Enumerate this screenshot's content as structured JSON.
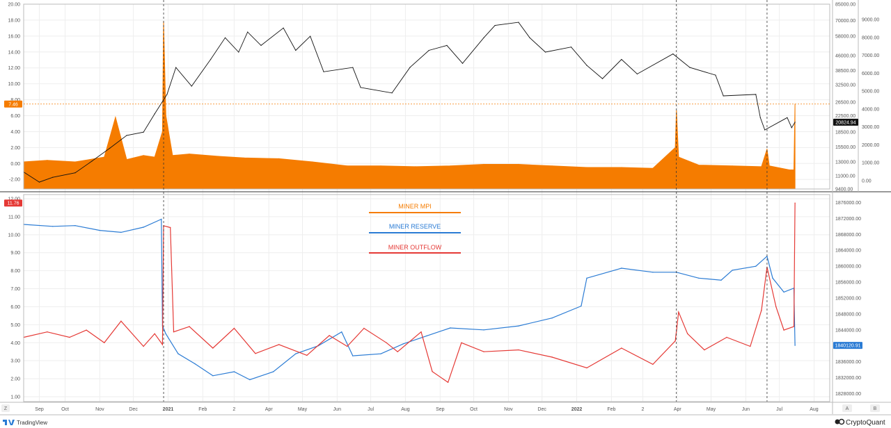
{
  "app": {
    "tradingview_label": "TradingView",
    "brand_label": "CryptoQuant"
  },
  "corner_buttons": {
    "left": "Z",
    "right_a": "A",
    "right_b": "B"
  },
  "colors": {
    "mpi": "#f57c00",
    "price": "#111111",
    "reserve": "#2a7bd4",
    "outflow": "#e53935",
    "grid": "#eeeeee",
    "axis": "#bbbbbb"
  },
  "x_labels": [
    "Sep",
    "Oct",
    "Nov",
    "Dec",
    "2021",
    "Feb",
    "2",
    "Apr",
    "May",
    "Jun",
    "Jul",
    "Aug",
    "Sep",
    "Oct",
    "Nov",
    "Dec",
    "2022",
    "Feb",
    "2",
    "Apr",
    "May",
    "Jun",
    "Jul",
    "Aug"
  ],
  "top_left_ticks": [
    "20.00",
    "18.00",
    "16.00",
    "14.00",
    "12.00",
    "10.00",
    "8.00",
    "6.00",
    "4.00",
    "2.00",
    "0.00",
    "-2.00"
  ],
  "top_mid_ticks": [
    "85000.00",
    "70000.00",
    "58000.00",
    "46000.00",
    "38500.00",
    "32500.00",
    "26500.00",
    "22500.00",
    "18500.00",
    "15500.00",
    "13000.00",
    "11000.00",
    "9400.00"
  ],
  "top_right_ticks": [
    "9000.00",
    "8000.00",
    "7000.00",
    "6000.00",
    "5000.00",
    "4000.00",
    "3000.00",
    "2000.00",
    "1000.00",
    "0.00"
  ],
  "bottom_left_ticks": [
    "12.00",
    "11.00",
    "10.00",
    "9.00",
    "8.00",
    "7.00",
    "6.00",
    "5.00",
    "4.00",
    "3.00",
    "2.00",
    "1.00"
  ],
  "bottom_right_ticks": [
    "1876000.00",
    "1872000.00",
    "1868000.00",
    "1864000.00",
    "1860000.00",
    "1856000.00",
    "1852000.00",
    "1848000.00",
    "1844000.00",
    "1840000.00",
    "1836000.00",
    "1832000.00",
    "1828000.00"
  ],
  "tags": {
    "mpi_last": "7.46",
    "price_last": "20824.94",
    "outflow_last": "11.76",
    "reserve_last": "1840120.91"
  },
  "legend": {
    "mpi": "MINER MPI",
    "reserve": "MINER RESERVE",
    "outflow": "MINER OUTFLOW"
  },
  "chart_data": {
    "type": "line",
    "x_range": [
      "2020-08-25",
      "2022-08-15"
    ],
    "markers": [
      "2020-12-28",
      "2022-03-31",
      "2022-06-20"
    ],
    "panels": [
      {
        "series": [
          {
            "name": "MINER MPI",
            "type": "area",
            "points": [
              [
                "2020-08-25",
                0.2
              ],
              [
                "2020-09-15",
                0.4
              ],
              [
                "2020-10-10",
                0.2
              ],
              [
                "2020-11-05",
                0.8
              ],
              [
                "2020-11-15",
                5.8
              ],
              [
                "2020-11-25",
                0.5
              ],
              [
                "2020-12-10",
                1.0
              ],
              [
                "2020-12-20",
                0.8
              ],
              [
                "2020-12-27",
                4.0
              ],
              [
                "2020-12-28",
                17.8
              ],
              [
                "2020-12-30",
                6.0
              ],
              [
                "2021-01-05",
                1.0
              ],
              [
                "2021-01-20",
                1.2
              ],
              [
                "2021-02-15",
                0.9
              ],
              [
                "2021-03-10",
                0.7
              ],
              [
                "2021-04-10",
                0.6
              ],
              [
                "2021-05-10",
                0.2
              ],
              [
                "2021-06-10",
                -0.3
              ],
              [
                "2021-07-10",
                -0.3
              ],
              [
                "2021-08-10",
                -0.4
              ],
              [
                "2021-09-10",
                -0.3
              ],
              [
                "2021-10-10",
                -0.1
              ],
              [
                "2021-11-10",
                -0.1
              ],
              [
                "2021-12-10",
                -0.3
              ],
              [
                "2022-01-10",
                -0.5
              ],
              [
                "2022-02-10",
                -0.5
              ],
              [
                "2022-03-10",
                -0.6
              ],
              [
                "2022-03-30",
                2.0
              ],
              [
                "2022-03-31",
                6.6
              ],
              [
                "2022-04-02",
                0.8
              ],
              [
                "2022-04-20",
                -0.2
              ],
              [
                "2022-05-20",
                -0.3
              ],
              [
                "2022-06-15",
                -0.4
              ],
              [
                "2022-06-20",
                1.8
              ],
              [
                "2022-06-22",
                -0.3
              ],
              [
                "2022-07-10",
                -0.8
              ],
              [
                "2022-07-14",
                -0.8
              ],
              [
                "2022-07-15",
                7.46
              ]
            ]
          },
          {
            "name": "Bitcoin price",
            "type": "line",
            "points": [
              [
                "2020-08-25",
                11500
              ],
              [
                "2020-09-08",
                10200
              ],
              [
                "2020-09-20",
                10800
              ],
              [
                "2020-10-10",
                11400
              ],
              [
                "2020-10-25",
                13100
              ],
              [
                "2020-11-10",
                15300
              ],
              [
                "2020-11-25",
                17800
              ],
              [
                "2020-12-10",
                18500
              ],
              [
                "2020-12-20",
                23000
              ],
              [
                "2020-12-31",
                29000
              ],
              [
                "2021-01-08",
                40000
              ],
              [
                "2021-01-22",
                32000
              ],
              [
                "2021-02-08",
                44000
              ],
              [
                "2021-02-21",
                57000
              ],
              [
                "2021-03-05",
                48000
              ],
              [
                "2021-03-13",
                61000
              ],
              [
                "2021-03-25",
                52000
              ],
              [
                "2021-04-14",
                64000
              ],
              [
                "2021-04-25",
                49000
              ],
              [
                "2021-05-08",
                58000
              ],
              [
                "2021-05-20",
                38000
              ],
              [
                "2021-06-15",
                40000
              ],
              [
                "2021-06-22",
                31500
              ],
              [
                "2021-07-20",
                29500
              ],
              [
                "2021-08-05",
                40000
              ],
              [
                "2021-08-22",
                49000
              ],
              [
                "2021-09-07",
                52000
              ],
              [
                "2021-09-21",
                42000
              ],
              [
                "2021-10-10",
                57000
              ],
              [
                "2021-10-20",
                66000
              ],
              [
                "2021-11-10",
                68500
              ],
              [
                "2021-11-20",
                57000
              ],
              [
                "2021-12-04",
                48000
              ],
              [
                "2021-12-27",
                51000
              ],
              [
                "2022-01-10",
                41000
              ],
              [
                "2022-01-24",
                35000
              ],
              [
                "2022-02-10",
                44000
              ],
              [
                "2022-02-24",
                37000
              ],
              [
                "2022-03-28",
                47000
              ],
              [
                "2022-04-12",
                40000
              ],
              [
                "2022-05-05",
                36500
              ],
              [
                "2022-05-12",
                28500
              ],
              [
                "2022-06-10",
                29000
              ],
              [
                "2022-06-14",
                22000
              ],
              [
                "2022-06-18",
                19000
              ],
              [
                "2022-07-08",
                22000
              ],
              [
                "2022-07-12",
                19500
              ],
              [
                "2022-07-15",
                20824.94
              ]
            ]
          }
        ],
        "y_left_range": [
          -3.2,
          20
        ],
        "y_right_range_price": [
          9400,
          85000
        ],
        "y_right_range_aux": [
          0,
          9000
        ]
      },
      {
        "series": [
          {
            "name": "MINER RESERVE",
            "type": "line",
            "points": [
              [
                "2020-08-25",
                1870500
              ],
              [
                "2020-09-20",
                1870000
              ],
              [
                "2020-10-10",
                1870200
              ],
              [
                "2020-11-01",
                1869000
              ],
              [
                "2020-11-20",
                1868500
              ],
              [
                "2020-12-10",
                1869800
              ],
              [
                "2020-12-26",
                1871800
              ],
              [
                "2020-12-27",
                1845000
              ],
              [
                "2020-12-30",
                1843000
              ],
              [
                "2021-01-10",
                1838000
              ],
              [
                "2021-01-25",
                1835500
              ],
              [
                "2021-02-10",
                1832500
              ],
              [
                "2021-03-01",
                1833500
              ],
              [
                "2021-03-15",
                1831500
              ],
              [
                "2021-04-05",
                1833500
              ],
              [
                "2021-04-25",
                1838000
              ],
              [
                "2021-05-15",
                1840000
              ],
              [
                "2021-06-05",
                1843500
              ],
              [
                "2021-06-15",
                1837500
              ],
              [
                "2021-07-10",
                1838000
              ],
              [
                "2021-07-30",
                1840500
              ],
              [
                "2021-08-20",
                1842500
              ],
              [
                "2021-09-10",
                1844500
              ],
              [
                "2021-10-10",
                1844000
              ],
              [
                "2021-11-10",
                1845000
              ],
              [
                "2021-12-10",
                1847000
              ],
              [
                "2022-01-05",
                1850000
              ],
              [
                "2022-01-10",
                1857000
              ],
              [
                "2022-02-10",
                1859500
              ],
              [
                "2022-03-10",
                1858500
              ],
              [
                "2022-03-31",
                1858500
              ],
              [
                "2022-04-20",
                1857000
              ],
              [
                "2022-05-10",
                1856500
              ],
              [
                "2022-05-20",
                1859000
              ],
              [
                "2022-06-10",
                1860000
              ],
              [
                "2022-06-20",
                1862500
              ],
              [
                "2022-06-25",
                1857000
              ],
              [
                "2022-07-05",
                1853500
              ],
              [
                "2022-07-14",
                1854500
              ],
              [
                "2022-07-15",
                1840120.91
              ]
            ]
          },
          {
            "name": "MINER OUTFLOW",
            "type": "line",
            "points": [
              [
                "2020-08-25",
                4.3
              ],
              [
                "2020-09-15",
                4.6
              ],
              [
                "2020-10-05",
                4.3
              ],
              [
                "2020-10-20",
                4.7
              ],
              [
                "2020-11-05",
                4.0
              ],
              [
                "2020-11-20",
                5.2
              ],
              [
                "2020-12-10",
                3.8
              ],
              [
                "2020-12-20",
                4.5
              ],
              [
                "2020-12-27",
                3.9
              ],
              [
                "2020-12-28",
                10.5
              ],
              [
                "2021-01-03",
                10.4
              ],
              [
                "2021-01-06",
                4.6
              ],
              [
                "2021-01-20",
                4.9
              ],
              [
                "2021-02-10",
                3.7
              ],
              [
                "2021-03-01",
                4.8
              ],
              [
                "2021-03-20",
                3.4
              ],
              [
                "2021-04-10",
                3.9
              ],
              [
                "2021-05-05",
                3.3
              ],
              [
                "2021-05-25",
                4.4
              ],
              [
                "2021-06-10",
                3.8
              ],
              [
                "2021-06-25",
                4.8
              ],
              [
                "2021-07-15",
                4.0
              ],
              [
                "2021-07-25",
                3.5
              ],
              [
                "2021-08-15",
                4.6
              ],
              [
                "2021-08-25",
                2.4
              ],
              [
                "2021-09-08",
                1.8
              ],
              [
                "2021-09-20",
                4.0
              ],
              [
                "2021-10-10",
                3.5
              ],
              [
                "2021-11-10",
                3.6
              ],
              [
                "2021-12-10",
                3.2
              ],
              [
                "2022-01-10",
                2.6
              ],
              [
                "2022-02-10",
                3.7
              ],
              [
                "2022-03-10",
                2.8
              ],
              [
                "2022-03-30",
                4.1
              ],
              [
                "2022-04-02",
                5.7
              ],
              [
                "2022-04-10",
                4.5
              ],
              [
                "2022-04-25",
                3.6
              ],
              [
                "2022-05-15",
                4.3
              ],
              [
                "2022-06-05",
                3.8
              ],
              [
                "2022-06-15",
                5.8
              ],
              [
                "2022-06-20",
                8.2
              ],
              [
                "2022-06-28",
                6.0
              ],
              [
                "2022-07-05",
                4.7
              ],
              [
                "2022-07-14",
                4.9
              ],
              [
                "2022-07-15",
                11.76
              ]
            ]
          }
        ],
        "y_left_range": [
          1,
          12
        ],
        "y_right_range": [
          1826000,
          1878000
        ]
      }
    ]
  }
}
